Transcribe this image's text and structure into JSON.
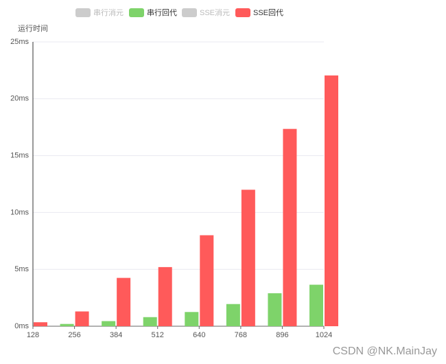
{
  "chart_data": {
    "type": "bar",
    "y_axis_name": "运行时间",
    "legend": [
      {
        "name": "串行消元",
        "color": "#cccccc",
        "selected": false
      },
      {
        "name": "串行回代",
        "color": "#7ed36a",
        "selected": true
      },
      {
        "name": "SSE消元",
        "color": "#cccccc",
        "selected": false
      },
      {
        "name": "SSE回代",
        "color": "#ff5a5a",
        "selected": true
      }
    ],
    "categories": [
      "128",
      "256",
      "384",
      "512",
      "640",
      "768",
      "896",
      "1024"
    ],
    "series": [
      {
        "name": "串行回代",
        "color": "#7ed36a",
        "values": [
          0.05,
          0.2,
          0.45,
          0.8,
          1.25,
          1.95,
          2.9,
          3.65
        ]
      },
      {
        "name": "SSE回代",
        "color": "#ff5a5a",
        "values": [
          0.35,
          1.3,
          4.25,
          5.2,
          8.0,
          12.0,
          17.35,
          22.05
        ]
      }
    ],
    "ylim": [
      0,
      25
    ],
    "yticks": [
      {
        "value": 0,
        "label": "0ms"
      },
      {
        "value": 5,
        "label": "5ms"
      },
      {
        "value": 10,
        "label": "10ms"
      },
      {
        "value": 15,
        "label": "15ms"
      },
      {
        "value": 20,
        "label": "20ms"
      },
      {
        "value": 25,
        "label": "25ms"
      }
    ],
    "grid": true,
    "watermark": "CSDN @NK.MainJay"
  }
}
